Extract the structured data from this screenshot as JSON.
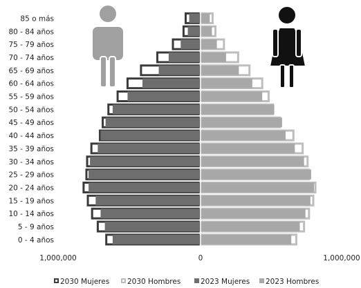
{
  "chart_data": {
    "type": "bar",
    "orientation": "horizontal-population-pyramid",
    "title": "",
    "xlabel": "",
    "ylabel": "",
    "xlim": [
      -1000000,
      1000000
    ],
    "x_tick_labels": [
      "1,000,000",
      "0",
      "1,000,000"
    ],
    "categories": [
      "85 o más",
      "80 - 84 años",
      "75 - 79 años",
      "70 - 74 años",
      "65 - 69 años",
      "60 - 64 años",
      "55 - 59 años",
      "50 - 54 años",
      "45 - 49 años",
      "40 - 44 años",
      "35 - 39 años",
      "30 - 34 años",
      "25 - 29 años",
      "20 - 24 años",
      "15 - 19 años",
      "10 - 14 años",
      "5 - 9 años",
      "0 - 4 años"
    ],
    "series": [
      {
        "name": "2030 Mujeres",
        "side": "left",
        "color": "#3a3a3a",
        "style": "outline",
        "values": [
          105000,
          120000,
          195000,
          305000,
          420000,
          515000,
          585000,
          650000,
          690000,
          710000,
          770000,
          800000,
          805000,
          825000,
          795000,
          765000,
          725000,
          665000
        ]
      },
      {
        "name": "2030 Hombres",
        "side": "right",
        "color": "#bdbdbd",
        "style": "outline",
        "values": [
          85000,
          105000,
          165000,
          265000,
          345000,
          435000,
          480000,
          510000,
          560000,
          655000,
          720000,
          755000,
          765000,
          810000,
          795000,
          765000,
          730000,
          675000
        ]
      },
      {
        "name": "2023 Mujeres",
        "side": "left",
        "color": "#6e6e6e",
        "style": "solid",
        "values": [
          80000,
          90000,
          140000,
          225000,
          295000,
          410000,
          515000,
          620000,
          670000,
          705000,
          725000,
          780000,
          790000,
          790000,
          740000,
          705000,
          675000,
          620000
        ]
      },
      {
        "name": "2023 Hombres",
        "side": "right",
        "color": "#a8a8a8",
        "style": "solid",
        "values": [
          65000,
          80000,
          115000,
          180000,
          270000,
          365000,
          435000,
          520000,
          575000,
          600000,
          665000,
          730000,
          780000,
          800000,
          775000,
          740000,
          700000,
          640000
        ]
      }
    ],
    "legend": {
      "position": "bottom",
      "items": [
        "2030 Mujeres",
        "2030 Hombres",
        "2023 Mujeres",
        "2023 Hombres"
      ]
    },
    "grid": false
  },
  "colors": {
    "male_icon": "#a0a0a0",
    "female_icon": "#111111",
    "axis_line": "#ffffff"
  },
  "icons": {
    "male": "male-person-icon",
    "female": "female-person-icon"
  }
}
